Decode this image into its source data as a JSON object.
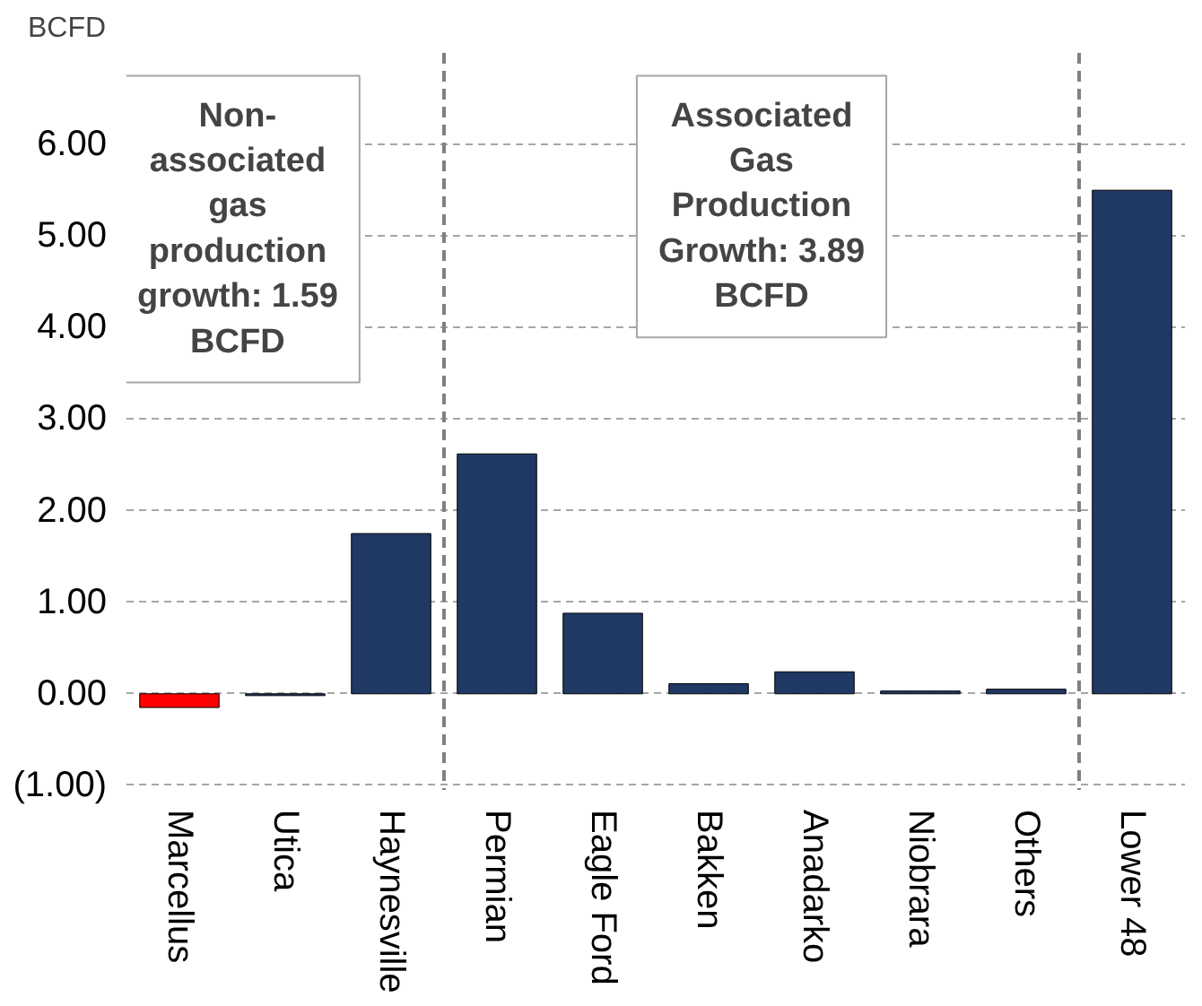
{
  "chart_data": {
    "type": "bar",
    "ylabel": "BCFD",
    "categories": [
      "Marcellus",
      "Utica",
      "Haynesville",
      "Permian",
      "Eagle Ford",
      "Bakken",
      "Anadarko",
      "Niobrara",
      "Others",
      "Lower 48"
    ],
    "values": [
      -0.15,
      -0.02,
      1.75,
      2.62,
      0.88,
      0.11,
      0.24,
      0.03,
      0.05,
      5.5
    ],
    "colors": [
      "#ff0000",
      "#1f3864",
      "#1f3864",
      "#1f3864",
      "#1f3864",
      "#1f3864",
      "#1f3864",
      "#1f3864",
      "#1f3864",
      "#1f3864"
    ],
    "ylim": [
      -1.05,
      7.0
    ],
    "yticks": [
      {
        "value": -1,
        "label": "(1.00)"
      },
      {
        "value": 0,
        "label": "0.00"
      },
      {
        "value": 1,
        "label": "1.00"
      },
      {
        "value": 2,
        "label": "2.00"
      },
      {
        "value": 3,
        "label": "3.00"
      },
      {
        "value": 4,
        "label": "4.00"
      },
      {
        "value": 5,
        "label": "5.00"
      },
      {
        "value": 6,
        "label": "6.00"
      }
    ],
    "grid": "y",
    "annotations": [
      "Non-associated gas production growth: 1.59 BCFD",
      "Associated Gas Production Growth: 3.89 BCFD"
    ]
  }
}
